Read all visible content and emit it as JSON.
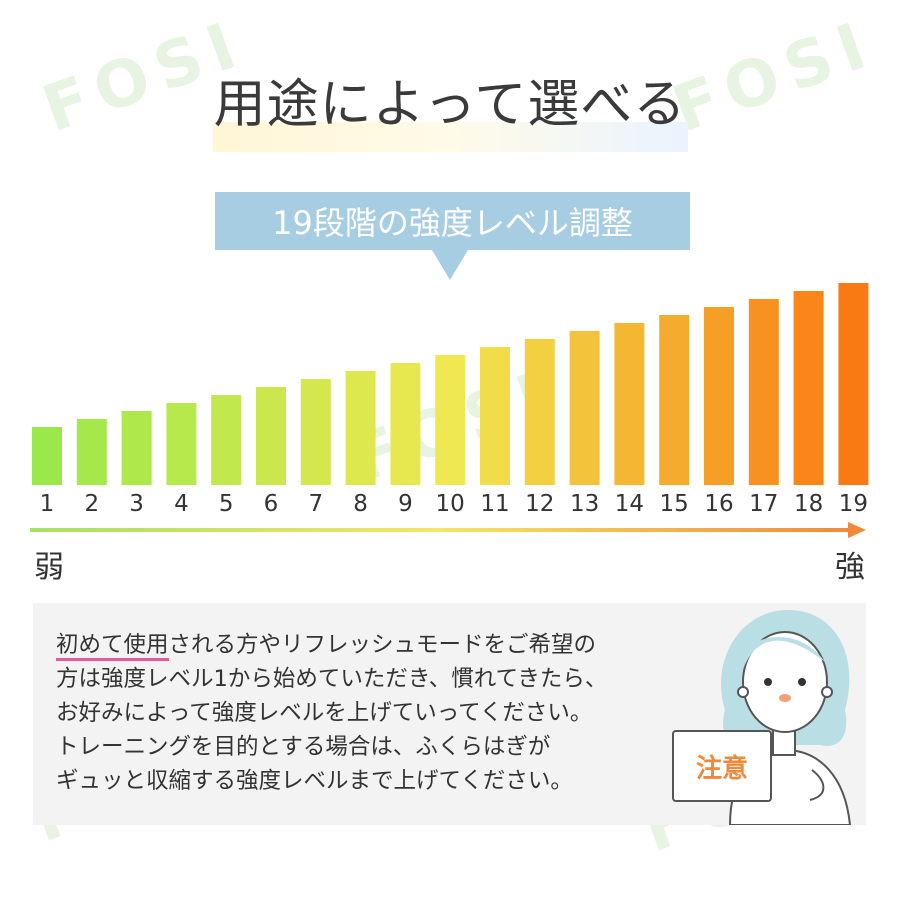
{
  "heading": "用途によって選べる",
  "callout": "19段階の強度レベル調整",
  "watermark": "FOSI",
  "scale_labels": {
    "weak": "弱",
    "strong": "強"
  },
  "colors": {
    "start": "#9be84a",
    "end": "#f97a12",
    "callout": "#a7cde2",
    "accent": "#f08a3a"
  },
  "chart_data": {
    "type": "bar",
    "categories": [
      "1",
      "2",
      "3",
      "4",
      "5",
      "6",
      "7",
      "8",
      "9",
      "10",
      "11",
      "12",
      "13",
      "14",
      "15",
      "16",
      "17",
      "18",
      "19"
    ],
    "values": [
      1,
      2,
      3,
      4,
      5,
      6,
      7,
      8,
      9,
      10,
      11,
      12,
      13,
      14,
      15,
      16,
      17,
      18,
      19
    ]
  },
  "note": {
    "highlight": "初めて使用",
    "line1_rest": "される方やリフレッシュモードをご希望の",
    "line2": "方は強度レベル1から始めていただき、慣れてきたら、",
    "line3": "お好みによって強度レベルを上げていってください。",
    "line4": "トレーニングを目的とする場合は、ふくらはぎが",
    "line5": "ギュッと収縮する強度レベルまで上げてください。"
  },
  "sign_label": "注意",
  "illustration": "woman-holding-sign-illustration"
}
